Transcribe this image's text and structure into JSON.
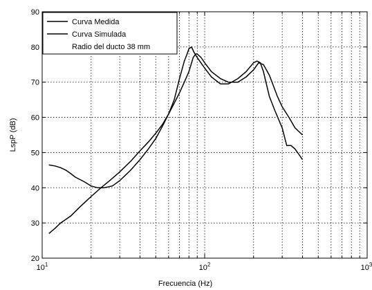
{
  "chart_data": {
    "type": "line",
    "xscale": "log",
    "xlim": [
      10,
      1000
    ],
    "ylim": [
      20,
      90
    ],
    "xlabel": "Frecuencia (Hz)",
    "ylabel": "LspP  (dB)",
    "grid": true,
    "legend_position": "top-left",
    "x_ticks": [
      10,
      100,
      1000
    ],
    "x_tick_labels": [
      {
        "base": "10",
        "exp": "1"
      },
      {
        "base": "10",
        "exp": "2"
      },
      {
        "base": "10",
        "exp": "3"
      }
    ],
    "y_ticks": [
      20,
      30,
      40,
      50,
      60,
      70,
      80,
      90
    ],
    "y_tick_labels": [
      "20",
      "30",
      "40",
      "50",
      "60",
      "70",
      "80",
      "90"
    ],
    "legend": [
      "Curva Medida",
      "Curva Simulada",
      "Radio del ducto 38 mm"
    ],
    "series": [
      {
        "name": "Curva Medida",
        "x": [
          11,
          12,
          13,
          14,
          15,
          16,
          18,
          20,
          22,
          24,
          27,
          30,
          35,
          40,
          45,
          50,
          55,
          60,
          65,
          70,
          75,
          78,
          80,
          83,
          86,
          90,
          100,
          110,
          125,
          140,
          160,
          180,
          200,
          210,
          220,
          230,
          250,
          270,
          300,
          320,
          340,
          360,
          380,
          400
        ],
        "y": [
          46.5,
          46.2,
          45.7,
          45,
          44,
          43,
          41.8,
          40.5,
          40,
          40,
          40.5,
          42,
          45,
          48,
          51,
          54,
          57.5,
          61,
          65,
          71,
          76,
          78,
          79.5,
          80,
          78.5,
          77,
          74,
          71.5,
          69.5,
          69.5,
          71,
          73,
          75.5,
          76,
          75.5,
          73,
          66,
          62,
          57,
          52,
          52,
          51,
          49.5,
          48
        ]
      },
      {
        "name": "Curva Simulada",
        "x": [
          11,
          12,
          13,
          15,
          17,
          20,
          23,
          26,
          30,
          35,
          40,
          45,
          50,
          55,
          60,
          65,
          70,
          75,
          80,
          85,
          88,
          90,
          95,
          100,
          110,
          125,
          140,
          160,
          180,
          200,
          215,
          230,
          250,
          280,
          300,
          330,
          360,
          400
        ],
        "y": [
          27,
          28.5,
          30,
          32,
          34.5,
          37.5,
          40,
          42,
          44.5,
          47.5,
          50.5,
          53,
          55.5,
          58,
          61,
          64,
          67,
          70,
          73,
          77,
          78,
          78,
          77,
          75.5,
          73,
          71,
          70,
          70,
          71.5,
          73.5,
          75.5,
          75,
          72,
          66,
          63,
          60,
          57,
          55
        ]
      }
    ]
  }
}
